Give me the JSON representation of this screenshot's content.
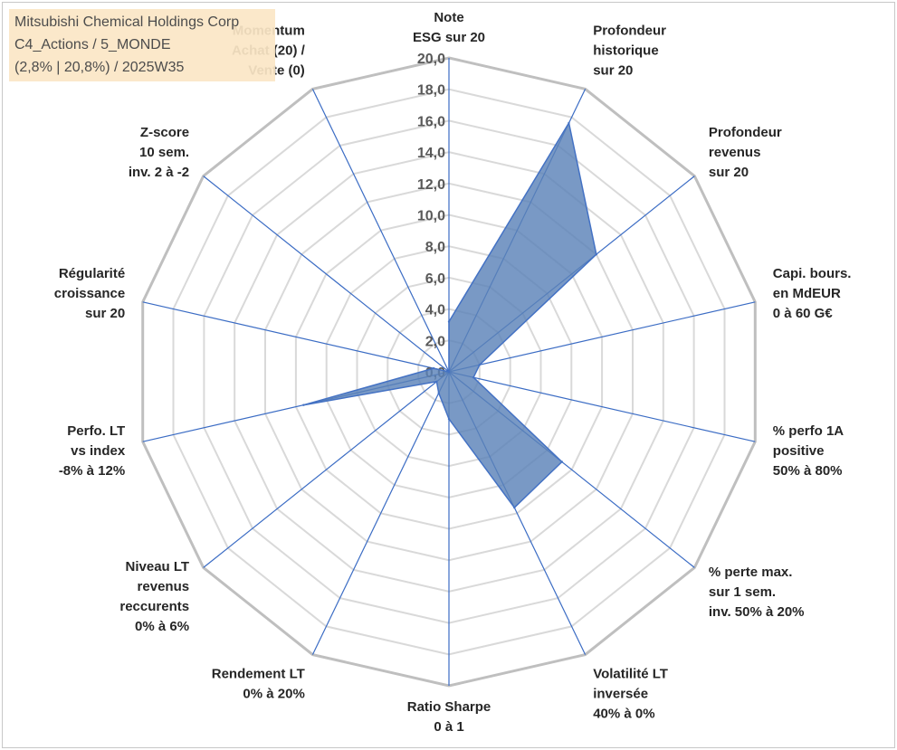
{
  "info_box": {
    "line1": "Mitsubishi Chemical Holdings Corp",
    "line2": "C4_Actions / 5_MONDE",
    "line3": "(2,8% | 20,8%) / 2025W35"
  },
  "colors": {
    "fill": "#5b83b8",
    "stroke": "#4472c4",
    "spoke": "#3b6cc4",
    "ring": "#d9d9d9",
    "ring_outer": "#bfbfbf",
    "info_bg": "#fbe7c6"
  },
  "chart_data": {
    "type": "radar",
    "title": "",
    "range": [
      0,
      20
    ],
    "tick_step": 2,
    "tick_labels": [
      "0,0",
      "2,0",
      "4,0",
      "6,0",
      "8,0",
      "10,0",
      "12,0",
      "14,0",
      "16,0",
      "18,0",
      "20,0"
    ],
    "grid": true,
    "axes": [
      [
        "Note",
        "ESG sur 20"
      ],
      [
        "Profondeur",
        "historique",
        "sur 20"
      ],
      [
        "Profondeur",
        "revenus",
        "sur 20"
      ],
      [
        "Capi. bours.",
        "en MdEUR",
        "0 à 60 G€"
      ],
      [
        "% perfo 1A",
        "positive",
        "50% à 80%"
      ],
      [
        "% perte max.",
        "sur 1 sem.",
        "inv. 50% à 20%"
      ],
      [
        "Volatilité LT",
        "inversée",
        "40% à 0%"
      ],
      [
        "Ratio Sharpe",
        "0 à 1"
      ],
      [
        "Rendement LT",
        "0% à 20%"
      ],
      [
        "Niveau LT",
        "revenus",
        "reccurents",
        "0% à 6%"
      ],
      [
        "Perfo. LT",
        "vs index",
        "-8% à 12%"
      ],
      [
        "Régularité",
        "croissance",
        "sur 20"
      ],
      [
        "Z-score",
        "10 sem.",
        "inv. 2 à -2"
      ],
      [
        "Momentum",
        "Achat (20) /",
        "Vente (0)"
      ]
    ],
    "values": [
      3.2,
      17.6,
      12.0,
      2.0,
      1.6,
      9.2,
      9.6,
      3.0,
      1.5,
      1.0,
      9.5,
      1.0,
      0.0,
      0.0
    ]
  }
}
